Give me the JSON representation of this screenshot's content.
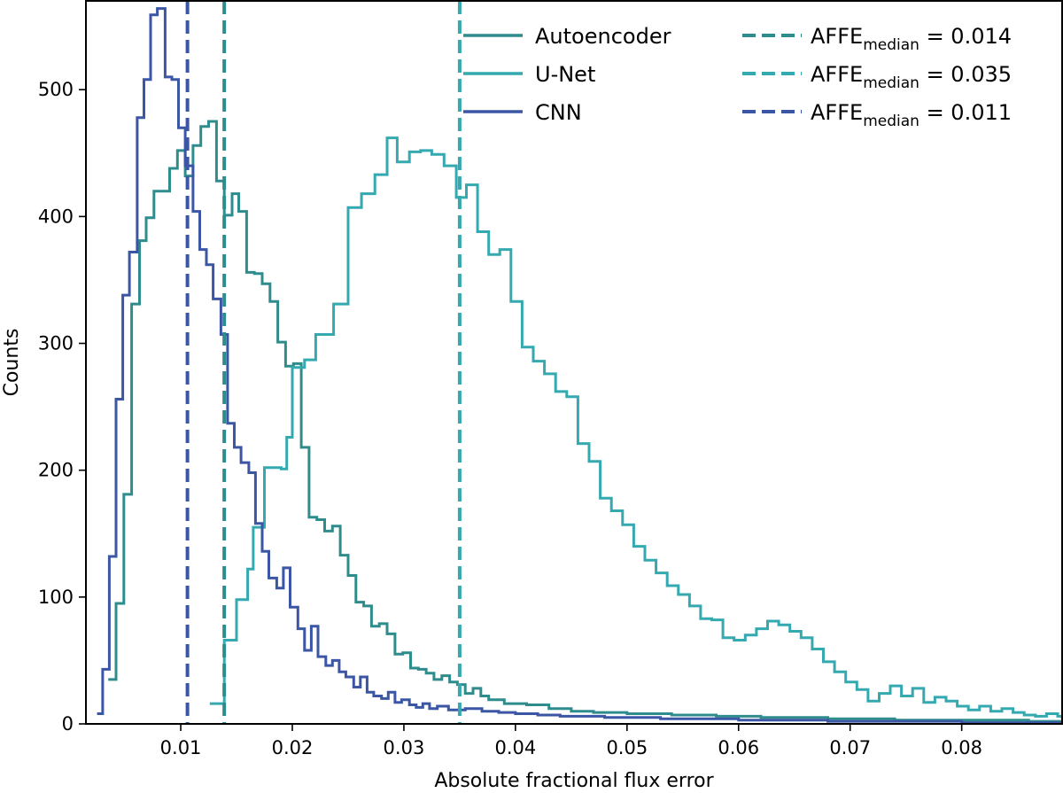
{
  "chart_data": {
    "type": "histogram",
    "xlabel": "Absolute fractional flux error",
    "ylabel": "Counts",
    "xlim": [
      0.0015,
      0.089
    ],
    "ylim": [
      0,
      570
    ],
    "xticks": [
      0.01,
      0.02,
      0.03,
      0.04,
      0.05,
      0.06,
      0.07,
      0.08
    ],
    "xtick_labels": [
      "0.01",
      "0.02",
      "0.03",
      "0.04",
      "0.05",
      "0.06",
      "0.07",
      "0.08"
    ],
    "yticks": [
      0,
      100,
      200,
      300,
      400,
      500
    ],
    "ytick_labels": [
      "0",
      "100",
      "200",
      "300",
      "400",
      "500"
    ],
    "legend_position": "top-right",
    "series": [
      {
        "name": "Autoencoder",
        "color": "#2f8c8c",
        "steps": [
          [
            0.0035,
            35
          ],
          [
            0.0042,
            95
          ],
          [
            0.0049,
            181
          ],
          [
            0.0056,
            331
          ],
          [
            0.0063,
            381
          ],
          [
            0.0069,
            399
          ],
          [
            0.0076,
            420
          ],
          [
            0.0083,
            420
          ],
          [
            0.009,
            438
          ],
          [
            0.0097,
            452
          ],
          [
            0.0104,
            432
          ],
          [
            0.0111,
            456
          ],
          [
            0.0118,
            471
          ],
          [
            0.0125,
            475
          ],
          [
            0.0132,
            428
          ],
          [
            0.0139,
            401
          ],
          [
            0.0146,
            418
          ],
          [
            0.0152,
            404
          ],
          [
            0.0159,
            356
          ],
          [
            0.0166,
            355
          ],
          [
            0.0173,
            347
          ],
          [
            0.018,
            333
          ],
          [
            0.0187,
            301
          ],
          [
            0.0194,
            282
          ],
          [
            0.0201,
            284
          ],
          [
            0.0208,
            218
          ],
          [
            0.0215,
            163
          ],
          [
            0.0222,
            161
          ],
          [
            0.0229,
            152
          ],
          [
            0.0236,
            156
          ],
          [
            0.0243,
            133
          ],
          [
            0.025,
            117
          ],
          [
            0.0257,
            96
          ],
          [
            0.0264,
            93
          ],
          [
            0.0271,
            77
          ],
          [
            0.0278,
            79
          ],
          [
            0.0285,
            71
          ],
          [
            0.0292,
            55
          ],
          [
            0.0299,
            56
          ],
          [
            0.0306,
            44
          ],
          [
            0.0313,
            43
          ],
          [
            0.032,
            40
          ],
          [
            0.0327,
            35
          ],
          [
            0.0334,
            38
          ],
          [
            0.0341,
            33
          ],
          [
            0.0348,
            31
          ],
          [
            0.0355,
            24
          ],
          [
            0.0362,
            28
          ],
          [
            0.0369,
            22
          ],
          [
            0.0376,
            19
          ],
          [
            0.039,
            16
          ],
          [
            0.041,
            15
          ],
          [
            0.043,
            12
          ],
          [
            0.045,
            10
          ],
          [
            0.047,
            9
          ],
          [
            0.05,
            8
          ],
          [
            0.054,
            7
          ],
          [
            0.058,
            6
          ],
          [
            0.062,
            5
          ],
          [
            0.068,
            4
          ],
          [
            0.074,
            3
          ],
          [
            0.08,
            3
          ],
          [
            0.086,
            2
          ],
          [
            0.089,
            2
          ]
        ]
      },
      {
        "name": "U-Net",
        "color": "#34a9b0",
        "steps": [
          [
            0.0126,
            16
          ],
          [
            0.0139,
            66
          ],
          [
            0.015,
            98
          ],
          [
            0.016,
            122
          ],
          [
            0.0165,
            155
          ],
          [
            0.0175,
            202
          ],
          [
            0.019,
            201
          ],
          [
            0.0195,
            226
          ],
          [
            0.02,
            281
          ],
          [
            0.0211,
            287
          ],
          [
            0.0221,
            307
          ],
          [
            0.0237,
            331
          ],
          [
            0.025,
            407
          ],
          [
            0.0262,
            418
          ],
          [
            0.0274,
            433
          ],
          [
            0.0285,
            462
          ],
          [
            0.0294,
            443
          ],
          [
            0.0305,
            451
          ],
          [
            0.0315,
            452
          ],
          [
            0.0325,
            449
          ],
          [
            0.0336,
            440
          ],
          [
            0.0347,
            415
          ],
          [
            0.0356,
            425
          ],
          [
            0.0366,
            388
          ],
          [
            0.0376,
            370
          ],
          [
            0.0386,
            374
          ],
          [
            0.0396,
            333
          ],
          [
            0.0406,
            297
          ],
          [
            0.0416,
            286
          ],
          [
            0.0426,
            276
          ],
          [
            0.0436,
            262
          ],
          [
            0.0446,
            258
          ],
          [
            0.0456,
            221
          ],
          [
            0.0466,
            207
          ],
          [
            0.0476,
            178
          ],
          [
            0.0486,
            168
          ],
          [
            0.0496,
            157
          ],
          [
            0.0506,
            140
          ],
          [
            0.0516,
            129
          ],
          [
            0.0526,
            119
          ],
          [
            0.0536,
            109
          ],
          [
            0.0546,
            102
          ],
          [
            0.0556,
            93
          ],
          [
            0.0566,
            83
          ],
          [
            0.0576,
            82
          ],
          [
            0.0586,
            68
          ],
          [
            0.0596,
            66
          ],
          [
            0.0606,
            70
          ],
          [
            0.0616,
            75
          ],
          [
            0.0626,
            81
          ],
          [
            0.0636,
            78
          ],
          [
            0.0646,
            73
          ],
          [
            0.0656,
            68
          ],
          [
            0.0666,
            59
          ],
          [
            0.0676,
            49
          ],
          [
            0.0686,
            41
          ],
          [
            0.0696,
            33
          ],
          [
            0.0706,
            27
          ],
          [
            0.0716,
            18
          ],
          [
            0.0726,
            24
          ],
          [
            0.0736,
            30
          ],
          [
            0.0746,
            22
          ],
          [
            0.0756,
            28
          ],
          [
            0.0766,
            17
          ],
          [
            0.0776,
            21
          ],
          [
            0.0786,
            18
          ],
          [
            0.0796,
            14
          ],
          [
            0.0806,
            11
          ],
          [
            0.0816,
            14
          ],
          [
            0.0826,
            10
          ],
          [
            0.0836,
            12
          ],
          [
            0.0846,
            9
          ],
          [
            0.0856,
            7
          ],
          [
            0.0866,
            6
          ],
          [
            0.0876,
            8
          ],
          [
            0.0886,
            6
          ],
          [
            0.089,
            5
          ]
        ]
      },
      {
        "name": "CNN",
        "color": "#3a56a5",
        "steps": [
          [
            0.0025,
            8
          ],
          [
            0.003,
            43
          ],
          [
            0.0036,
            132
          ],
          [
            0.0042,
            256
          ],
          [
            0.0048,
            338
          ],
          [
            0.0054,
            372
          ],
          [
            0.0061,
            478
          ],
          [
            0.0067,
            508
          ],
          [
            0.0073,
            559
          ],
          [
            0.0079,
            564
          ],
          [
            0.0086,
            510
          ],
          [
            0.0092,
            508
          ],
          [
            0.0098,
            470
          ],
          [
            0.0104,
            440
          ],
          [
            0.0111,
            404
          ],
          [
            0.0117,
            374
          ],
          [
            0.0123,
            362
          ],
          [
            0.0129,
            335
          ],
          [
            0.0136,
            307
          ],
          [
            0.0142,
            237
          ],
          [
            0.0148,
            218
          ],
          [
            0.0154,
            206
          ],
          [
            0.0161,
            198
          ],
          [
            0.0167,
            158
          ],
          [
            0.0173,
            136
          ],
          [
            0.0179,
            115
          ],
          [
            0.0186,
            107
          ],
          [
            0.0192,
            123
          ],
          [
            0.0198,
            92
          ],
          [
            0.0205,
            75
          ],
          [
            0.0211,
            58
          ],
          [
            0.0217,
            77
          ],
          [
            0.0223,
            53
          ],
          [
            0.023,
            46
          ],
          [
            0.0236,
            50
          ],
          [
            0.0242,
            41
          ],
          [
            0.0248,
            37
          ],
          [
            0.0255,
            29
          ],
          [
            0.0261,
            37
          ],
          [
            0.0267,
            25
          ],
          [
            0.0273,
            22
          ],
          [
            0.028,
            20
          ],
          [
            0.0286,
            25
          ],
          [
            0.0292,
            17
          ],
          [
            0.0298,
            19
          ],
          [
            0.0305,
            15
          ],
          [
            0.0311,
            13
          ],
          [
            0.0317,
            16
          ],
          [
            0.0323,
            12
          ],
          [
            0.033,
            14
          ],
          [
            0.034,
            11
          ],
          [
            0.0355,
            12
          ],
          [
            0.037,
            10
          ],
          [
            0.0385,
            9
          ],
          [
            0.04,
            8
          ],
          [
            0.042,
            7
          ],
          [
            0.044,
            6
          ],
          [
            0.046,
            6
          ],
          [
            0.048,
            5
          ],
          [
            0.05,
            5
          ],
          [
            0.053,
            4
          ],
          [
            0.056,
            4
          ],
          [
            0.06,
            3
          ],
          [
            0.064,
            3
          ],
          [
            0.068,
            2
          ],
          [
            0.072,
            2
          ],
          [
            0.076,
            2
          ],
          [
            0.08,
            1
          ],
          [
            0.085,
            1
          ],
          [
            0.089,
            1
          ]
        ]
      }
    ],
    "median_lines": [
      {
        "series": "Autoencoder",
        "label_main": "AFFE",
        "label_sub": "median",
        "label_value": " = 0.014",
        "value": 0.0139,
        "color": "#2f8c8c"
      },
      {
        "series": "U-Net",
        "label_main": "AFFE",
        "label_sub": "median",
        "label_value": " = 0.035",
        "value": 0.035,
        "color": "#34a9b0"
      },
      {
        "series": "CNN",
        "label_main": "AFFE",
        "label_sub": "median",
        "label_value": " = 0.011",
        "value": 0.0106,
        "color": "#3a56a5"
      }
    ]
  }
}
